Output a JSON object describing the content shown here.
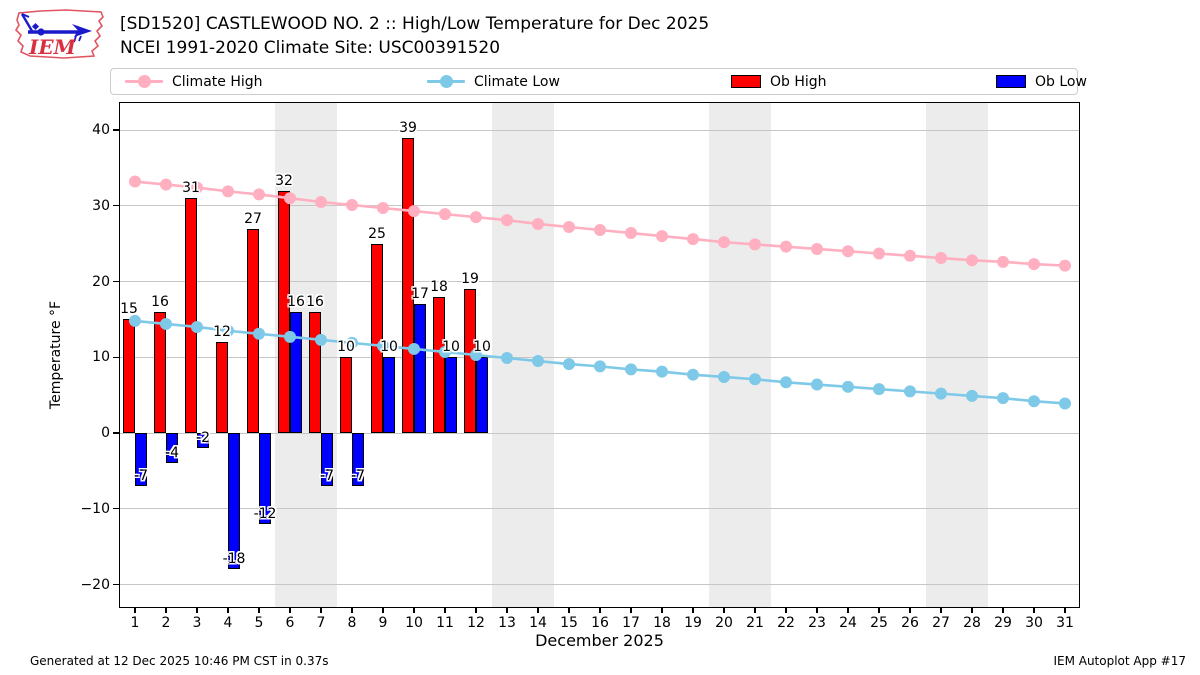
{
  "header": {
    "title_line1": "[SD1520] CASTLEWOOD NO. 2 :: High/Low Temperature for Dec 2025",
    "title_line2": "NCEI 1991-2020 Climate Site: USC00391520",
    "logo_text": "IEM"
  },
  "legend": {
    "items": [
      {
        "label": "Climate High",
        "swatch": "line",
        "color": "#ffafc0"
      },
      {
        "label": "Climate Low",
        "swatch": "line",
        "color": "#7fc9e8"
      },
      {
        "label": "Ob High",
        "swatch": "patch",
        "color": "#ff0000"
      },
      {
        "label": "Ob Low",
        "swatch": "patch",
        "color": "#0000ff"
      }
    ]
  },
  "chart_data": {
    "type": "bar",
    "title": "[SD1520] CASTLEWOOD NO. 2 :: High/Low Temperature for Dec 2025",
    "subtitle": "NCEI 1991-2020 Climate Site: USC00391520",
    "xlabel": "December 2025",
    "ylabel": "Temperature °F",
    "ylim": [
      -23.1,
      43.7
    ],
    "yticks": [
      -20,
      -10,
      0,
      10,
      20,
      30,
      40
    ],
    "xticks": [
      1,
      2,
      3,
      4,
      5,
      6,
      7,
      8,
      9,
      10,
      11,
      12,
      13,
      14,
      15,
      16,
      17,
      18,
      19,
      20,
      21,
      22,
      23,
      24,
      25,
      26,
      27,
      28,
      29,
      30,
      31
    ],
    "grid": "horizontal",
    "weekend_bands": [
      [
        5.5,
        7.5
      ],
      [
        12.5,
        14.5
      ],
      [
        19.5,
        21.5
      ],
      [
        26.5,
        28.5
      ]
    ],
    "series": [
      {
        "name": "Climate High",
        "type": "line",
        "color": "#ffafc0",
        "x": [
          1,
          2,
          3,
          4,
          5,
          6,
          7,
          8,
          9,
          10,
          11,
          12,
          13,
          14,
          15,
          16,
          17,
          18,
          19,
          20,
          21,
          22,
          23,
          24,
          25,
          26,
          27,
          28,
          29,
          30,
          31
        ],
        "values": [
          33.2,
          32.8,
          32.4,
          31.9,
          31.5,
          31.0,
          30.5,
          30.1,
          29.7,
          29.3,
          28.9,
          28.5,
          28.1,
          27.6,
          27.2,
          26.8,
          26.4,
          26.0,
          25.6,
          25.2,
          24.9,
          24.6,
          24.3,
          24.0,
          23.7,
          23.4,
          23.1,
          22.8,
          22.6,
          22.3,
          22.1
        ]
      },
      {
        "name": "Climate Low",
        "type": "line",
        "color": "#7fc9e8",
        "x": [
          1,
          2,
          3,
          4,
          5,
          6,
          7,
          8,
          9,
          10,
          11,
          12,
          13,
          14,
          15,
          16,
          17,
          18,
          19,
          20,
          21,
          22,
          23,
          24,
          25,
          26,
          27,
          28,
          29,
          30,
          31
        ],
        "values": [
          14.8,
          14.4,
          14.0,
          13.5,
          13.1,
          12.7,
          12.3,
          11.9,
          11.5,
          11.1,
          10.7,
          10.3,
          9.9,
          9.5,
          9.1,
          8.8,
          8.4,
          8.1,
          7.7,
          7.4,
          7.1,
          6.7,
          6.4,
          6.1,
          5.8,
          5.5,
          5.2,
          4.9,
          4.6,
          4.2,
          3.9
        ]
      },
      {
        "name": "Ob High",
        "type": "bar",
        "color": "#ff0000",
        "x": [
          1,
          2,
          3,
          4,
          5,
          6,
          7,
          8,
          9,
          10,
          11,
          12
        ],
        "values": [
          15,
          16,
          31,
          12,
          27,
          32,
          16,
          10,
          25,
          39,
          18,
          19
        ],
        "labels": [
          "15",
          "16",
          "31",
          "12",
          "27",
          "32",
          "16",
          "10",
          "25",
          "39",
          "18",
          "19"
        ]
      },
      {
        "name": "Ob Low",
        "type": "bar",
        "color": "#0000ff",
        "x": [
          1,
          2,
          3,
          4,
          5,
          6,
          7,
          8,
          9,
          10,
          11,
          12
        ],
        "values": [
          -7,
          -4,
          -2,
          -18,
          -12,
          16,
          -7,
          -7,
          10,
          17,
          10,
          10
        ],
        "labels": [
          "-7",
          "-4",
          "-2",
          "-18",
          "-12",
          "16",
          "-7",
          "-7",
          "10",
          "17",
          "10",
          "10"
        ]
      }
    ],
    "legend_position": "top",
    "month_days": 31
  },
  "footer": {
    "left": "Generated at 12 Dec 2025 10:46 PM CST in 0.37s",
    "right": "IEM Autoplot App #17"
  }
}
